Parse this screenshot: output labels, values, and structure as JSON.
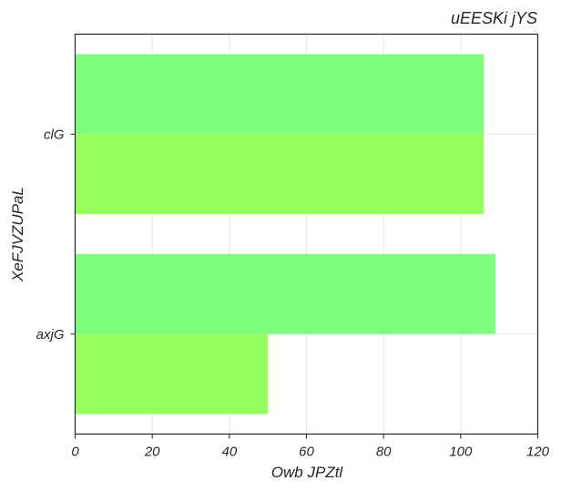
{
  "chart_data": {
    "type": "bar",
    "orientation": "horizontal",
    "title": "uEESKi jYS",
    "xlabel": "Owb JPZtl",
    "ylabel": "XeFJVZUPaL",
    "categories": [
      "clG",
      "axjG"
    ],
    "series": [
      {
        "color": "#7dff7d",
        "values": [
          106,
          109
        ]
      },
      {
        "color": "#95ff5e",
        "values": [
          106,
          50
        ]
      }
    ],
    "xlim": [
      0,
      120
    ],
    "xticks": [
      0,
      20,
      40,
      60,
      80,
      100,
      120
    ],
    "grid": true
  }
}
